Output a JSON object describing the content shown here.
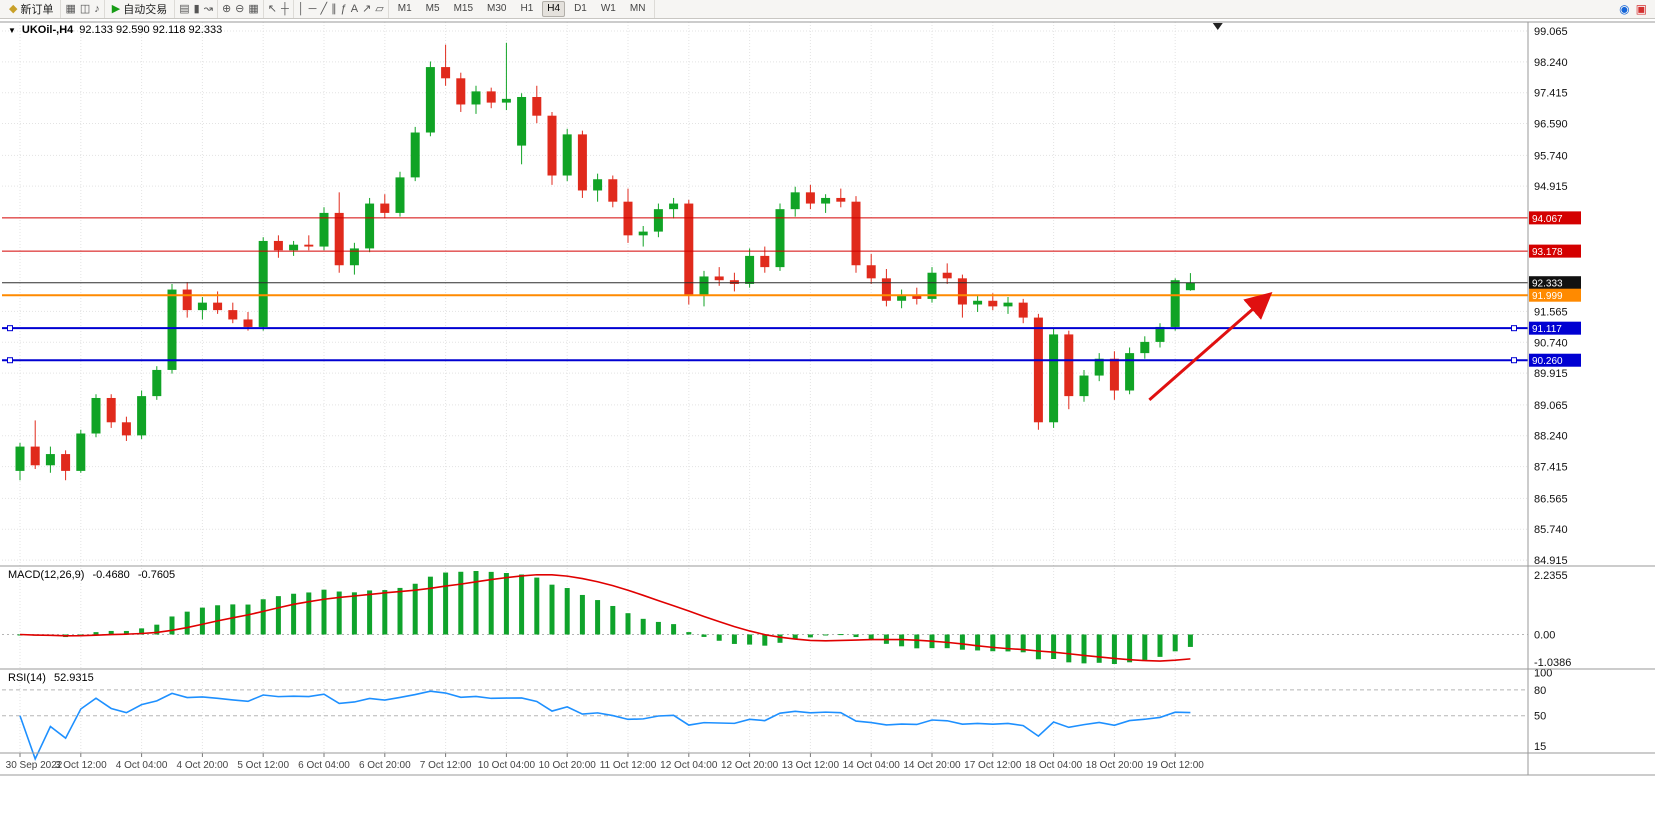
{
  "toolbar": {
    "new_order": {
      "label": "新订单",
      "icon": "◆"
    },
    "autotrading": {
      "label": "自动交易",
      "icon": "▶"
    },
    "icons": {
      "charts": "▦",
      "profiles": "◫",
      "alerts": "♪",
      "bars": "▤",
      "candles": "▮",
      "linechart": "↝",
      "zoomin": "⊕",
      "zoomout": "⊖",
      "tile": "▦",
      "cursor": "↖",
      "crosshair": "┼",
      "vline": "│",
      "hline": "─",
      "trend": "╱",
      "channel": "∥",
      "fibo": "ƒ",
      "text": "A",
      "arrow": "↗",
      "shapes": "▱",
      "search": "◉",
      "notify": "▣"
    },
    "timeframes": [
      "M1",
      "M5",
      "M15",
      "M30",
      "H1",
      "H4",
      "D1",
      "W1",
      "MN"
    ],
    "active_timeframe": "H4"
  },
  "chart": {
    "title_symbol": "UKOil-,H4",
    "title_ohlc": "92.133 92.590 92.118 92.333",
    "shift_marker_bar": 78.8,
    "price_axis": {
      "ticks": [
        "99.065",
        "98.240",
        "97.415",
        "96.590",
        "95.740",
        "94.915",
        "91.565",
        "90.740",
        "89.915",
        "89.065",
        "88.240",
        "87.415",
        "86.565",
        "85.740",
        "84.915"
      ]
    },
    "levels": [
      {
        "name": "resistance-line-1",
        "price": 94.067,
        "label": "94.067",
        "color": "#d40000",
        "width": 1
      },
      {
        "name": "resistance-line-2",
        "price": 93.178,
        "label": "93.178",
        "color": "#d40000",
        "width": 1
      },
      {
        "name": "current-price-line",
        "price": 92.333,
        "label": "92.333",
        "color": "#2e2e2e",
        "tag_bg": "#111111",
        "width": 1
      },
      {
        "name": "alert-line",
        "price": 91.999,
        "label": "91.999",
        "color": "#ff8a00",
        "width": 2
      },
      {
        "name": "support-line-1",
        "price": 91.117,
        "label": "91.117",
        "color": "#0000d2",
        "width": 2,
        "handles": true
      },
      {
        "name": "support-line-2",
        "price": 90.26,
        "label": "90.260",
        "color": "#0000d2",
        "width": 2,
        "handles": true
      }
    ],
    "annotation_arrow": {
      "from_bar": 74.3,
      "from_price": 89.2,
      "to_bar": 82.1,
      "to_price": 91.98
    }
  },
  "chart_data": {
    "type": "candlestick",
    "symbol": "UKOil-",
    "timeframe": "H4",
    "title": "UKOil-,H4 92.133 92.590 92.118 92.333",
    "ohlc_current": {
      "open": 92.133,
      "high": 92.59,
      "low": 92.118,
      "close": 92.333
    },
    "ylim": [
      84.915,
      99.065
    ],
    "label_every_bars": 4,
    "x_labels": [
      "30 Sep 2022",
      "3 Oct 12:00",
      "4 Oct 04:00",
      "4 Oct 20:00",
      "5 Oct 12:00",
      "6 Oct 04:00",
      "6 Oct 20:00",
      "7 Oct 12:00",
      "10 Oct 04:00",
      "10 Oct 20:00",
      "11 Oct 12:00",
      "12 Oct 04:00",
      "12 Oct 20:00",
      "13 Oct 12:00",
      "14 Oct 04:00",
      "14 Oct 20:00",
      "17 Oct 12:00",
      "18 Oct 04:00",
      "18 Oct 20:00",
      "19 Oct 12:00"
    ],
    "candles": [
      [
        87.3,
        88.05,
        87.05,
        87.95
      ],
      [
        87.95,
        88.65,
        87.35,
        87.45
      ],
      [
        87.45,
        87.95,
        87.25,
        87.75
      ],
      [
        87.75,
        87.85,
        87.05,
        87.3
      ],
      [
        87.3,
        88.4,
        87.25,
        88.3
      ],
      [
        88.3,
        89.35,
        88.2,
        89.25
      ],
      [
        89.25,
        89.35,
        88.45,
        88.6
      ],
      [
        88.6,
        88.75,
        88.1,
        88.25
      ],
      [
        88.25,
        89.45,
        88.15,
        89.3
      ],
      [
        89.3,
        90.1,
        89.2,
        90.0
      ],
      [
        90.0,
        92.3,
        89.9,
        92.15
      ],
      [
        92.15,
        92.35,
        91.4,
        91.6
      ],
      [
        91.6,
        91.95,
        91.35,
        91.8
      ],
      [
        91.8,
        92.1,
        91.5,
        91.6
      ],
      [
        91.6,
        91.8,
        91.25,
        91.35
      ],
      [
        91.35,
        91.55,
        91.05,
        91.15
      ],
      [
        91.15,
        93.55,
        91.05,
        93.45
      ],
      [
        93.45,
        93.6,
        93.0,
        93.2
      ],
      [
        93.2,
        93.45,
        93.05,
        93.35
      ],
      [
        93.35,
        93.6,
        93.2,
        93.3
      ],
      [
        93.3,
        94.35,
        93.2,
        94.2
      ],
      [
        94.2,
        94.75,
        92.6,
        92.8
      ],
      [
        92.8,
        93.4,
        92.55,
        93.25
      ],
      [
        93.25,
        94.6,
        93.15,
        94.45
      ],
      [
        94.45,
        94.7,
        94.05,
        94.2
      ],
      [
        94.2,
        95.3,
        94.1,
        95.15
      ],
      [
        95.15,
        96.5,
        95.05,
        96.35
      ],
      [
        96.35,
        98.25,
        96.25,
        98.1
      ],
      [
        98.1,
        98.7,
        97.6,
        97.8
      ],
      [
        97.8,
        97.95,
        96.9,
        97.1
      ],
      [
        97.1,
        97.6,
        96.85,
        97.45
      ],
      [
        97.45,
        97.55,
        97.0,
        97.15
      ],
      [
        97.15,
        98.75,
        96.95,
        97.25
      ],
      [
        96.0,
        97.4,
        95.5,
        97.3
      ],
      [
        97.3,
        97.6,
        96.6,
        96.8
      ],
      [
        96.8,
        96.9,
        94.95,
        95.2
      ],
      [
        95.2,
        96.45,
        95.05,
        96.3
      ],
      [
        96.3,
        96.4,
        94.6,
        94.8
      ],
      [
        94.8,
        95.25,
        94.5,
        95.1
      ],
      [
        95.1,
        95.2,
        94.35,
        94.5
      ],
      [
        94.5,
        94.85,
        93.4,
        93.6
      ],
      [
        93.6,
        93.85,
        93.3,
        93.7
      ],
      [
        93.7,
        94.45,
        93.55,
        94.3
      ],
      [
        94.3,
        94.6,
        94.05,
        94.45
      ],
      [
        94.45,
        94.55,
        91.75,
        92.0
      ],
      [
        92.0,
        92.65,
        91.7,
        92.5
      ],
      [
        92.5,
        92.75,
        92.25,
        92.4
      ],
      [
        92.4,
        92.6,
        92.1,
        92.3
      ],
      [
        92.3,
        93.25,
        92.2,
        93.05
      ],
      [
        93.05,
        93.3,
        92.6,
        92.75
      ],
      [
        92.75,
        94.45,
        92.65,
        94.3
      ],
      [
        94.3,
        94.9,
        94.1,
        94.75
      ],
      [
        94.75,
        94.95,
        94.3,
        94.45
      ],
      [
        94.45,
        94.7,
        94.2,
        94.6
      ],
      [
        94.6,
        94.85,
        94.35,
        94.5
      ],
      [
        94.5,
        94.65,
        92.6,
        92.8
      ],
      [
        92.8,
        93.1,
        92.3,
        92.45
      ],
      [
        92.45,
        92.7,
        91.7,
        91.85
      ],
      [
        91.85,
        92.15,
        91.65,
        92.0
      ],
      [
        92.0,
        92.2,
        91.75,
        91.9
      ],
      [
        91.9,
        92.75,
        91.8,
        92.6
      ],
      [
        92.6,
        92.85,
        92.3,
        92.45
      ],
      [
        92.45,
        92.55,
        91.4,
        91.75
      ],
      [
        91.75,
        92.0,
        91.55,
        91.85
      ],
      [
        91.85,
        92.05,
        91.6,
        91.7
      ],
      [
        91.7,
        91.95,
        91.5,
        91.8
      ],
      [
        91.8,
        91.9,
        91.25,
        91.4
      ],
      [
        91.4,
        91.5,
        88.4,
        88.6
      ],
      [
        88.6,
        91.1,
        88.45,
        90.95
      ],
      [
        90.95,
        91.05,
        88.95,
        89.3
      ],
      [
        89.3,
        90.0,
        89.15,
        89.85
      ],
      [
        89.85,
        90.45,
        89.7,
        90.3
      ],
      [
        90.3,
        90.5,
        89.2,
        89.45
      ],
      [
        89.45,
        90.6,
        89.35,
        90.45
      ],
      [
        90.45,
        90.9,
        90.3,
        90.75
      ],
      [
        90.75,
        91.25,
        90.6,
        91.15
      ],
      [
        91.15,
        92.45,
        91.05,
        92.4
      ],
      [
        92.133,
        92.59,
        92.118,
        92.333
      ]
    ]
  },
  "macd": {
    "label": "MACD(12,26,9)",
    "value_main": "-0.4680",
    "value_signal": "-0.7605",
    "axis_labels": [
      "2.2355",
      "0.00",
      "-1.0386"
    ],
    "axis_max": 2.2355,
    "axis_min": -1.0386
  },
  "rsi": {
    "label": "RSI(14)",
    "value": "52.9315",
    "axis_labels": [
      "100",
      "80",
      "50",
      "15"
    ],
    "axis_values": [
      100,
      80,
      50,
      15
    ],
    "levels": [
      80,
      50
    ]
  },
  "colors": {
    "bull": "#10a325",
    "bear": "#e02a1c",
    "macd_hist": "#0fa32b",
    "macd_signal": "#e00000",
    "rsi_line": "#1e90ff",
    "grid": "#e3e3e3",
    "level_grid": "#b5b5b5",
    "arrow": "#e01010",
    "border": "#9a9a9a"
  }
}
